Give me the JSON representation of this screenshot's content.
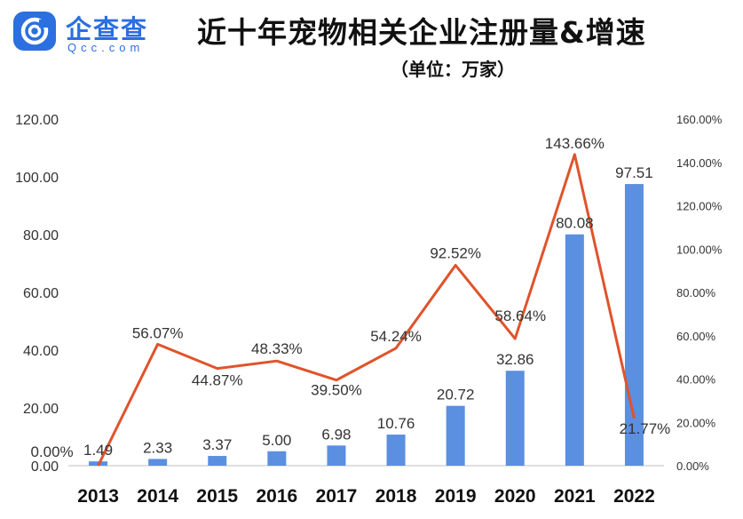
{
  "logo": {
    "name": "企查查",
    "domain": "Qcc.com",
    "icon": "qcc-logo-icon"
  },
  "chart_data": {
    "type": "bar",
    "title": "近十年宠物相关企业注册量&增速",
    "subtitle": "（单位：万家）",
    "categories": [
      "2013",
      "2014",
      "2015",
      "2016",
      "2017",
      "2018",
      "2019",
      "2020",
      "2021",
      "2022"
    ],
    "series": [
      {
        "type": "bar",
        "axis": "left",
        "color": "#5b8fe0",
        "values": [
          1.49,
          2.33,
          3.37,
          5.0,
          6.98,
          10.76,
          20.72,
          32.86,
          80.08,
          97.51
        ],
        "labels": [
          "1.49",
          "2.33",
          "3.37",
          "5.00",
          "6.98",
          "10.76",
          "20.72",
          "32.86",
          "80.08",
          "97.51"
        ]
      },
      {
        "type": "line",
        "axis": "right",
        "color": "#e0532b",
        "values": [
          0.0,
          56.07,
          44.87,
          48.33,
          39.5,
          54.24,
          92.52,
          58.64,
          143.66,
          21.77
        ],
        "labels": [
          "0.00%",
          "56.07%",
          "44.87%",
          "48.33%",
          "39.50%",
          "54.24%",
          "92.52%",
          "58.64%",
          "143.66%",
          "21.77%"
        ]
      }
    ],
    "left_axis": {
      "ylim": [
        0,
        120
      ],
      "ticks": [
        0,
        20,
        40,
        60,
        80,
        100,
        120
      ],
      "tick_labels": [
        "0.00",
        "20.00",
        "40.00",
        "60.00",
        "80.00",
        "100.00",
        "120.00"
      ]
    },
    "right_axis": {
      "ylim": [
        0,
        160
      ],
      "ticks": [
        0,
        20,
        40,
        60,
        80,
        100,
        120,
        140,
        160
      ],
      "tick_labels": [
        "0.00%",
        "20.00%",
        "40.00%",
        "60.00%",
        "80.00%",
        "100.00%",
        "120.00%",
        "140.00%",
        "160.00%"
      ]
    },
    "grid": false,
    "legend": "none"
  }
}
